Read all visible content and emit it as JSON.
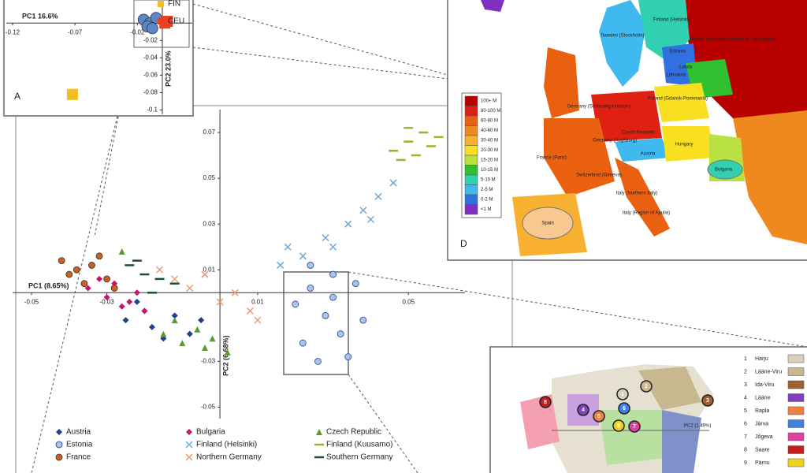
{
  "chart_data": [
    {
      "type": "scatter",
      "xlabel": "PC1 (8.65%)",
      "ylabel": "PC2 (6.68%)",
      "xlim": [
        -0.055,
        0.065
      ],
      "ylim": [
        -0.055,
        0.08
      ],
      "xticks": [
        -0.05,
        -0.03,
        0.01,
        0.05
      ],
      "yticks": [
        0.07,
        0.05,
        0.03,
        0.01,
        -0.03,
        -0.05
      ],
      "legend": "bottom",
      "series": [
        {
          "name": "Austria",
          "color": "#1f3f8f",
          "marker": "diamond",
          "x": [
            -0.025,
            -0.02,
            -0.018,
            -0.012,
            -0.008,
            -0.005,
            -0.015,
            -0.022
          ],
          "y": [
            -0.012,
            -0.008,
            -0.015,
            -0.01,
            -0.018,
            -0.012,
            -0.02,
            -0.004
          ]
        },
        {
          "name": "Bulgaria",
          "color": "#c8146e",
          "marker": "diamond",
          "x": [
            -0.035,
            -0.03,
            -0.028,
            -0.024,
            -0.02,
            -0.032,
            -0.026,
            -0.022
          ],
          "y": [
            0.002,
            -0.002,
            0.004,
            -0.004,
            -0.008,
            0.006,
            -0.006,
            0.0
          ]
        },
        {
          "name": "Czech Republic",
          "color": "#5a9a30",
          "marker": "triangle",
          "x": [
            -0.015,
            -0.01,
            -0.006,
            -0.002,
            0.002,
            -0.012,
            -0.004,
            -0.026
          ],
          "y": [
            -0.018,
            -0.022,
            -0.016,
            -0.02,
            -0.026,
            -0.012,
            -0.024,
            0.018
          ]
        },
        {
          "name": "Estonia",
          "color": "#a8c4ec",
          "marker": "circle",
          "x": [
            0.02,
            0.024,
            0.028,
            0.032,
            0.036,
            0.022,
            0.03,
            0.034,
            0.026,
            0.038,
            0.024,
            0.03
          ],
          "y": [
            -0.005,
            0.002,
            -0.01,
            -0.018,
            0.004,
            -0.022,
            0.008,
            -0.028,
            -0.03,
            -0.012,
            0.012,
            -0.002
          ]
        },
        {
          "name": "Finland (Helsinki)",
          "color": "#70a8d4",
          "marker": "x",
          "x": [
            0.016,
            0.022,
            0.028,
            0.034,
            0.038,
            0.042,
            0.046,
            0.03,
            0.04,
            0.018
          ],
          "y": [
            0.012,
            0.016,
            0.024,
            0.03,
            0.036,
            0.042,
            0.048,
            0.02,
            0.032,
            0.02
          ]
        },
        {
          "name": "Finland (Kuusamo)",
          "color": "#a0b030",
          "marker": "dash",
          "x": [
            0.046,
            0.05,
            0.054,
            0.058,
            0.052,
            0.048,
            0.056,
            0.05
          ],
          "y": [
            0.062,
            0.066,
            0.07,
            0.068,
            0.06,
            0.058,
            0.064,
            0.072
          ]
        },
        {
          "name": "France",
          "color": "#c86020",
          "marker": "circle",
          "x": [
            -0.042,
            -0.038,
            -0.034,
            -0.03,
            -0.036,
            -0.04,
            -0.032,
            -0.028
          ],
          "y": [
            0.014,
            0.01,
            0.012,
            0.006,
            0.004,
            0.008,
            0.016,
            0.002
          ]
        },
        {
          "name": "Northern Germany",
          "color": "#f09878",
          "marker": "x",
          "x": [
            -0.012,
            -0.008,
            -0.004,
            0.0,
            0.004,
            0.008,
            -0.016,
            0.01
          ],
          "y": [
            0.006,
            0.002,
            0.008,
            -0.004,
            0.0,
            -0.008,
            0.01,
            -0.012
          ]
        },
        {
          "name": "Southern Germany",
          "color": "#1a5030",
          "marker": "dash",
          "x": [
            -0.024,
            -0.02,
            -0.016,
            -0.012,
            -0.018,
            -0.022
          ],
          "y": [
            0.012,
            0.008,
            0.006,
            0.004,
            0.0,
            0.014
          ]
        }
      ]
    },
    {
      "type": "scatter",
      "panel": "A",
      "xlabel": "PC1 16.6%",
      "ylabel": "PC2 23.0%",
      "xlim": [
        -0.125,
        0.024
      ],
      "ylim": [
        -0.105,
        0.022
      ],
      "xticks": [
        -0.12,
        -0.07,
        -0.02
      ],
      "yticks": [
        -0.02,
        -0.04,
        -0.06,
        -0.08,
        -0.1
      ],
      "legend": "upper right",
      "series": [
        {
          "color": "#5a88c8",
          "marker": "circle",
          "x": [
            -0.015,
            -0.01,
            -0.005,
            -0.012,
            -0.008
          ],
          "y": [
            0.004,
            0.0,
            0.006,
            -0.004,
            -0.006
          ]
        },
        {
          "color": "#50a040",
          "marker": "triangle",
          "x": [
            -0.072
          ],
          "y": [
            -0.082
          ]
        },
        {
          "name": "FIN",
          "color": "#f0c020",
          "marker": "square",
          "x": [
            -0.072
          ],
          "y": [
            -0.082
          ]
        },
        {
          "name": "CEU",
          "color": "#e84020",
          "marker": "square",
          "x": [
            0.002,
            0.004
          ],
          "y": [
            0.0,
            0.002
          ]
        }
      ]
    }
  ],
  "map_europe": {
    "panel": "D",
    "legend": [
      {
        "label": "100+ M",
        "color": "#b80000"
      },
      {
        "label": "80-100 M",
        "color": "#e02010"
      },
      {
        "label": "60-80 M",
        "color": "#e86010"
      },
      {
        "label": "40-60 M",
        "color": "#f08820"
      },
      {
        "label": "30-40 M",
        "color": "#f8b030"
      },
      {
        "label": "20-30 M",
        "color": "#f8e020"
      },
      {
        "label": "15-20 M",
        "color": "#b8e040"
      },
      {
        "label": "10-15 M",
        "color": "#30c030"
      },
      {
        "label": "5-10 M",
        "color": "#30d0b0"
      },
      {
        "label": "2-5 M",
        "color": "#40b8f0"
      },
      {
        "label": "0-2 M",
        "color": "#3070e0"
      },
      {
        "label": "<1 M",
        "color": "#8030c0"
      }
    ],
    "labels": [
      "Finland (Helsinki)",
      "Sweden (Stockholm)",
      "Estonia",
      "Latvia",
      "Lithuania",
      "Russia (Andreapol district of Tver region)",
      "Poland (Gdansk-Pomerania)",
      "Germany (Schleswig-Holstein)",
      "Germany (Augsburg)",
      "Czech Republic",
      "Austria",
      "Hungary",
      "France (Paris)",
      "Switzerland (Geneva)",
      "Italy (Northern Italy)",
      "Italy (Region of Apulia)",
      "Spain",
      "Bulgaria"
    ]
  },
  "map_estonia": {
    "xlabel": "PC2 (1.49%)",
    "legend": [
      {
        "number": 1,
        "name": "Harju",
        "color": "#d8d0b8"
      },
      {
        "number": 2,
        "name": "Lääne-Viru",
        "color": "#c8b890"
      },
      {
        "number": 3,
        "name": "Ida-Viru",
        "color": "#a06030"
      },
      {
        "number": 4,
        "name": "Lääne",
        "color": "#8040c0"
      },
      {
        "number": 5,
        "name": "Rapla",
        "color": "#f08040"
      },
      {
        "number": 6,
        "name": "Järva",
        "color": "#4080e0"
      },
      {
        "number": 7,
        "name": "Jõgeva",
        "color": "#e040a0"
      },
      {
        "number": 8,
        "name": "Saare",
        "color": "#c02020"
      },
      {
        "number": 9,
        "name": "Pärnu",
        "color": "#f0d020"
      }
    ]
  }
}
